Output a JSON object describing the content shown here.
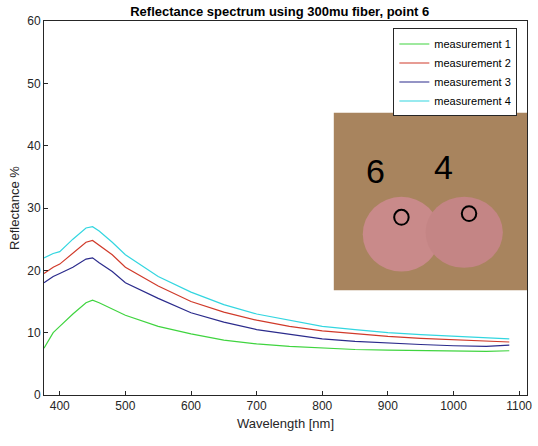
{
  "chart_data": {
    "type": "line",
    "title": "Reflectance spectrum using 300mu fiber, point 6",
    "x_label": "Wavelength [nm]",
    "y_label": "Reflectance %",
    "x": [
      376,
      390,
      400,
      420,
      440,
      450,
      460,
      480,
      500,
      550,
      600,
      650,
      700,
      750,
      800,
      850,
      900,
      950,
      1000,
      1050,
      1085
    ],
    "series": [
      {
        "name": "measurement 1",
        "color": "#3fd43f",
        "values": [
          7.5,
          10,
          11,
          13,
          14.8,
          15.2,
          14.8,
          13.8,
          12.8,
          11,
          9.8,
          8.8,
          8.2,
          7.8,
          7.5,
          7.3,
          7.2,
          7.1,
          7.0,
          7.0,
          7.1
        ]
      },
      {
        "name": "measurement 2",
        "color": "#d03a2a",
        "values": [
          19.5,
          20.5,
          21,
          22.8,
          24.5,
          24.8,
          24,
          22.5,
          20.5,
          17.5,
          15,
          13.3,
          12,
          11,
          10.3,
          9.8,
          9.4,
          9.1,
          8.9,
          8.7,
          8.5
        ]
      },
      {
        "name": "measurement 3",
        "color": "#2b2b8c",
        "values": [
          18,
          19,
          19.5,
          20.5,
          21.8,
          22,
          21.2,
          19.8,
          18,
          15.5,
          13.2,
          11.7,
          10.5,
          9.7,
          9,
          8.6,
          8.3,
          8.1,
          7.9,
          7.8,
          8.0
        ]
      },
      {
        "name": "measurement 4",
        "color": "#33d6e0",
        "values": [
          22,
          22.7,
          23,
          25,
          26.8,
          27,
          26.3,
          24.5,
          22.5,
          19,
          16.5,
          14.5,
          13,
          12,
          11,
          10.5,
          10,
          9.7,
          9.4,
          9.2,
          9.0
        ]
      }
    ],
    "xlim": [
      376,
      1112
    ],
    "xticks": [
      400,
      500,
      600,
      700,
      800,
      900,
      1000,
      1100
    ],
    "ylim": [
      0,
      60
    ],
    "yticks": [
      0,
      10,
      20,
      30,
      40,
      50,
      60
    ],
    "grid": false,
    "legend": "top-right",
    "annotations": [
      {
        "text": "6"
      },
      {
        "text": "4"
      }
    ]
  }
}
